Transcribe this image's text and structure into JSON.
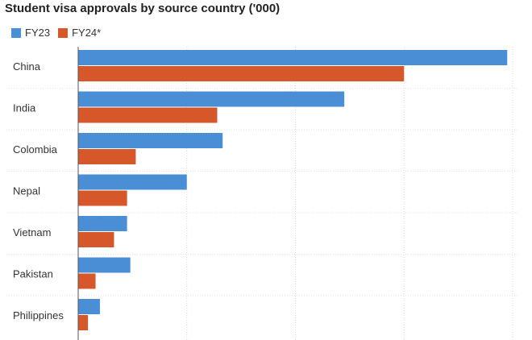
{
  "chart_data": {
    "type": "bar",
    "orientation": "horizontal",
    "title": "Student visa approvals by source country ('000)",
    "categories": [
      "China",
      "India",
      "Colombia",
      "Nepal",
      "Vietnam",
      "Pakistan",
      "Philippines"
    ],
    "series": [
      {
        "name": "FY23",
        "color": "#4a8fd6",
        "values": [
          39.5,
          24.5,
          13.3,
          10.0,
          4.5,
          4.8,
          2.0
        ]
      },
      {
        "name": "FY24*",
        "color": "#d6582a",
        "values": [
          30.0,
          12.8,
          5.3,
          4.5,
          3.3,
          1.6,
          0.9
        ]
      }
    ],
    "xlim": [
      0,
      40
    ],
    "grid": true,
    "legend_position": "top-left"
  }
}
